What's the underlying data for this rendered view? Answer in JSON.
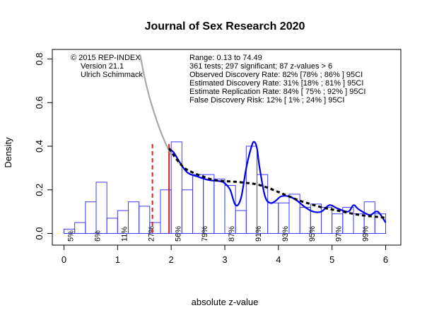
{
  "chart_data": {
    "type": "histogram",
    "title": "Journal of Sex Research 2020",
    "xlabel": "absolute z-value",
    "ylabel": "Density",
    "xlim": [
      -0.2,
      6.1
    ],
    "ylim": [
      -0.03,
      0.82
    ],
    "x_ticks": [
      "0",
      "1",
      "2",
      "3",
      "4",
      "5",
      "6"
    ],
    "y_ticks": [
      "0.0",
      "0.2",
      "0.4",
      "0.6",
      "0.8"
    ],
    "bin_width": 0.2,
    "bins": [
      {
        "x0": 0.0,
        "x1": 0.2,
        "density": 0.02
      },
      {
        "x0": 0.2,
        "x1": 0.4,
        "density": 0.05
      },
      {
        "x0": 0.4,
        "x1": 0.6,
        "density": 0.145
      },
      {
        "x0": 0.6,
        "x1": 0.8,
        "density": 0.235
      },
      {
        "x0": 0.8,
        "x1": 1.0,
        "density": 0.07
      },
      {
        "x0": 1.0,
        "x1": 1.2,
        "density": 0.105
      },
      {
        "x0": 1.2,
        "x1": 1.4,
        "density": 0.145
      },
      {
        "x0": 1.4,
        "x1": 1.6,
        "density": 0.125
      },
      {
        "x0": 1.6,
        "x1": 1.8,
        "density": 0.05
      },
      {
        "x0": 1.8,
        "x1": 2.0,
        "density": 0.2
      },
      {
        "x0": 2.0,
        "x1": 2.2,
        "density": 0.42
      },
      {
        "x0": 2.2,
        "x1": 2.4,
        "density": 0.2
      },
      {
        "x0": 2.4,
        "x1": 2.6,
        "density": 0.27
      },
      {
        "x0": 2.6,
        "x1": 2.8,
        "density": 0.27
      },
      {
        "x0": 2.8,
        "x1": 3.0,
        "density": 0.25
      },
      {
        "x0": 3.0,
        "x1": 3.2,
        "density": 0.22
      },
      {
        "x0": 3.2,
        "x1": 3.4,
        "density": 0.105
      },
      {
        "x0": 3.4,
        "x1": 3.6,
        "density": 0.4
      },
      {
        "x0": 3.6,
        "x1": 3.8,
        "density": 0.27
      },
      {
        "x0": 3.8,
        "x1": 4.0,
        "density": 0.14
      },
      {
        "x0": 4.0,
        "x1": 4.2,
        "density": 0.14
      },
      {
        "x0": 4.2,
        "x1": 4.4,
        "density": 0.18
      },
      {
        "x0": 4.4,
        "x1": 4.6,
        "density": 0.12
      },
      {
        "x0": 4.6,
        "x1": 4.8,
        "density": 0.135
      },
      {
        "x0": 4.8,
        "x1": 5.0,
        "density": 0.12
      },
      {
        "x0": 5.0,
        "x1": 5.2,
        "density": 0.09
      },
      {
        "x0": 5.2,
        "x1": 5.4,
        "density": 0.12
      },
      {
        "x0": 5.4,
        "x1": 5.6,
        "density": 0.09
      },
      {
        "x0": 5.6,
        "x1": 5.8,
        "density": 0.145
      },
      {
        "x0": 5.8,
        "x1": 6.0,
        "density": 0.09
      }
    ],
    "power_labels": [
      {
        "x": 0.12,
        "text": "5%"
      },
      {
        "x": 0.62,
        "text": "6%"
      },
      {
        "x": 1.12,
        "text": "11%"
      },
      {
        "x": 1.62,
        "text": "27%"
      },
      {
        "x": 2.12,
        "text": "56%"
      },
      {
        "x": 2.62,
        "text": "79%"
      },
      {
        "x": 3.12,
        "text": "87%"
      },
      {
        "x": 3.62,
        "text": "91%"
      },
      {
        "x": 4.12,
        "text": "93%"
      },
      {
        "x": 4.62,
        "text": "95%"
      },
      {
        "x": 5.12,
        "text": "97%"
      },
      {
        "x": 5.62,
        "text": "99%"
      }
    ],
    "reference_lines": [
      {
        "x": 1.65,
        "y_top": 0.41,
        "style": "dashed",
        "color": "#dd1c1c"
      },
      {
        "x": 1.96,
        "y_top": 0.41,
        "style": "solid",
        "color": "#dd1c1c"
      }
    ],
    "series": [
      {
        "style": "gray-solid",
        "color": "#a8a8a8",
        "x": [
          1.42,
          1.5,
          1.6,
          1.7,
          1.8,
          1.9,
          1.96,
          2.0
        ],
        "y": [
          0.82,
          0.72,
          0.62,
          0.54,
          0.47,
          0.41,
          0.38,
          0.36
        ]
      },
      {
        "style": "blue-solid",
        "color": "#0000ee",
        "x": [
          1.96,
          2.05,
          2.15,
          2.3,
          2.5,
          2.7,
          2.9,
          3.0,
          3.1,
          3.2,
          3.3,
          3.4,
          3.5,
          3.55,
          3.6,
          3.65,
          3.75,
          3.85,
          3.95,
          4.05,
          4.2,
          4.35,
          4.5,
          4.65,
          4.8,
          4.95,
          5.1,
          5.3,
          5.4,
          5.5,
          5.7,
          5.85,
          6.0
        ],
        "y": [
          0.39,
          0.37,
          0.33,
          0.28,
          0.26,
          0.245,
          0.24,
          0.23,
          0.2,
          0.13,
          0.16,
          0.3,
          0.4,
          0.42,
          0.39,
          0.3,
          0.17,
          0.14,
          0.15,
          0.17,
          0.17,
          0.15,
          0.12,
          0.1,
          0.1,
          0.13,
          0.115,
          0.1,
          0.13,
          0.11,
          0.085,
          0.1,
          0.05
        ]
      },
      {
        "style": "black-dashed",
        "color": "#000000",
        "x": [
          1.96,
          2.1,
          2.25,
          2.4,
          2.6,
          2.8,
          3.0,
          3.2,
          3.4,
          3.6,
          3.8,
          4.0,
          4.2,
          4.4,
          4.6,
          4.8,
          5.0,
          5.2,
          5.4,
          5.6,
          5.8,
          6.0
        ],
        "y": [
          0.39,
          0.34,
          0.3,
          0.28,
          0.26,
          0.245,
          0.24,
          0.237,
          0.232,
          0.225,
          0.21,
          0.19,
          0.17,
          0.15,
          0.135,
          0.12,
          0.11,
          0.1,
          0.09,
          0.082,
          0.077,
          0.072
        ]
      }
    ],
    "annotations_left": [
      "© 2015 REP-INDEX",
      "Version 21.1",
      "Ulrich Schimmack"
    ],
    "annotations_right": [
      "Range: 0.13 to 74.49",
      "361 tests; 297 significant; 87 z-values > 6",
      "Observed Discovery Rate: 82% [78% ; 86% ] 95CI",
      "Estimated Discovery Rate: 31% [18% ; 81% ] 95CI",
      "Estimate Replication Rate: 84% [ 75% ; 92% ] 95CI",
      "False Discovery Risk: 12% [ 1% ; 24% ] 95CI"
    ]
  },
  "colors": {
    "bar_stroke": "#3b3bff",
    "gray_curve": "#a8a8a8",
    "blue_curve": "#0000ee",
    "red_line": "#dd1c1c",
    "dashed_curve": "#000000"
  }
}
